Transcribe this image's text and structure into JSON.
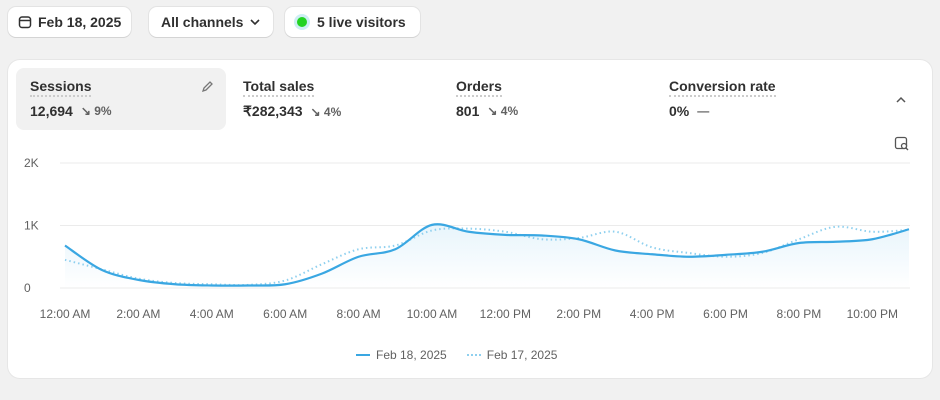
{
  "toolbar": {
    "date": "Feb 18, 2025",
    "channels": "All channels",
    "live": "5 live visitors"
  },
  "metrics": [
    {
      "label": "Sessions",
      "value": "12,694",
      "delta": "9%"
    },
    {
      "label": "Total sales",
      "value": "₹282,343",
      "delta": "4%"
    },
    {
      "label": "Orders",
      "value": "801",
      "delta": "4%"
    },
    {
      "label": "Conversion rate",
      "value": "0%",
      "delta": "—"
    }
  ],
  "colors": {
    "accent": "#3aa7e2",
    "live": "#22d322"
  },
  "chart_data": {
    "type": "line",
    "x": [
      0,
      1,
      2,
      3,
      4,
      5,
      6,
      7,
      8,
      9,
      10,
      11,
      12,
      13,
      14,
      15,
      16,
      17,
      18,
      19,
      20,
      21,
      22,
      23
    ],
    "ylim": [
      0,
      2000
    ],
    "yticks": [
      "0",
      "1K",
      "2K"
    ],
    "xticks": [
      "12:00 AM",
      "2:00 AM",
      "4:00 AM",
      "6:00 AM",
      "8:00 AM",
      "10:00 AM",
      "12:00 PM",
      "2:00 PM",
      "4:00 PM",
      "6:00 PM",
      "8:00 PM",
      "10:00 PM"
    ],
    "series": [
      {
        "name": "Feb 18, 2025",
        "style": "solid",
        "values": [
          680,
          290,
          130,
          60,
          40,
          40,
          60,
          230,
          500,
          620,
          1010,
          900,
          850,
          840,
          780,
          600,
          540,
          500,
          530,
          580,
          720,
          740,
          780,
          940
        ]
      },
      {
        "name": "Feb 17, 2025",
        "style": "dotted",
        "values": [
          450,
          300,
          150,
          80,
          60,
          50,
          120,
          380,
          620,
          680,
          920,
          950,
          900,
          780,
          800,
          900,
          650,
          560,
          500,
          560,
          780,
          980,
          900,
          930
        ]
      }
    ]
  }
}
